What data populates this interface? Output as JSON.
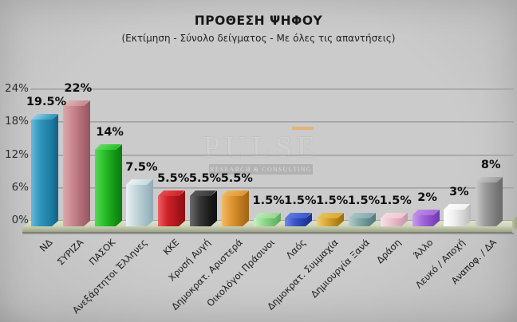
{
  "header": {
    "title": "ΠΡΟΘΕΣΗ ΨΗΦΟΥ",
    "subtitle": "(Εκτίμηση - Σύνολο δείγματος - Με όλες τις απαντήσεις)"
  },
  "watermark": {
    "name": "PULSE",
    "tagline": "RESEARCH & CONSULTING",
    "accent_color": "#ecab5f"
  },
  "chart_data": {
    "type": "bar",
    "title": "ΠΡΟΘΕΣΗ ΨΗΦΟΥ",
    "subtitle": "(Εκτίμηση - Σύνολο δείγματος - Με όλες τις απαντήσεις)",
    "style": "3d-column",
    "grid": true,
    "legend_position": "none",
    "ylim": [
      0,
      24
    ],
    "yticks": [
      {
        "value": 24,
        "label": "24%"
      },
      {
        "value": 18,
        "label": "18%"
      },
      {
        "value": 12,
        "label": "12%"
      },
      {
        "value": 6,
        "label": "6%"
      },
      {
        "value": 0,
        "label": "0%"
      }
    ],
    "categories": [
      "ΝΔ",
      "ΣΥΡΙΖΑ",
      "ΠΑΣΟΚ",
      "Ανεξάρτητοι Έλληνες",
      "ΚΚΕ",
      "Χρυσή Αυγή",
      "Δημοκρατ. Αριστερά",
      "Οικολόγοι Πράσινοι",
      "Λαός",
      "Δημοκρατ. Συμμαχία",
      "Δημιουργία Ξανά",
      "Δράση",
      "Άλλο",
      "Λευκό / Αποχή",
      "Αναποφ. / ΔΑ"
    ],
    "values": [
      19.5,
      22,
      14,
      7.5,
      5.5,
      5.5,
      5.5,
      1.5,
      1.5,
      1.5,
      1.5,
      1.5,
      2,
      3,
      8
    ],
    "value_labels": [
      "19.5%",
      "22%",
      "14%",
      "7.5%",
      "5.5%",
      "5.5%",
      "5.5%",
      "1.5%",
      "1.5%",
      "1.5%",
      "1.5%",
      "1.5%",
      "2%",
      "3%",
      "8%"
    ],
    "colors": [
      {
        "light": "#62b8d6",
        "mid": "#2e95ba",
        "dark": "#1b79a2",
        "side": "#14607f",
        "top": "#8fccdf"
      },
      {
        "light": "#dda6ab",
        "mid": "#c8878e",
        "dark": "#aa6570",
        "side": "#92555e",
        "top": "#e0b2b5"
      },
      {
        "light": "#57d654",
        "mid": "#2abf2a",
        "dark": "#119114",
        "side": "#0d7a11",
        "top": "#63da63"
      },
      {
        "light": "#e7f0f2",
        "mid": "#c6d8dc",
        "dark": "#a0bcc4",
        "side": "#90abb4",
        "top": "#eaf2f3"
      },
      {
        "light": "#e85e62",
        "mid": "#d02228",
        "dark": "#a21418",
        "side": "#8c1014",
        "top": "#e5484d"
      },
      {
        "light": "#6a6a6a",
        "mid": "#3a3a3a",
        "dark": "#181818",
        "side": "#101010",
        "top": "#575757"
      },
      {
        "light": "#f3ba60",
        "mid": "#df9532",
        "dark": "#b7741c",
        "side": "#a06414",
        "top": "#eeb556"
      },
      {
        "light": "#c6efc2",
        "mid": "#94da91",
        "dark": "#69bd69",
        "side": "#60a660",
        "top": "#b6eab2"
      },
      {
        "light": "#6d87e9",
        "mid": "#3c57ca",
        "dark": "#2138a2",
        "side": "#1c2f8e",
        "top": "#6079de"
      },
      {
        "light": "#f1cd70",
        "mid": "#d9a93a",
        "dark": "#b08013",
        "side": "#966f0e",
        "top": "#e7c257"
      },
      {
        "light": "#b4cccd",
        "mid": "#86aaac",
        "dark": "#5e878a",
        "side": "#537b7d",
        "top": "#a7c3c4"
      },
      {
        "light": "#f9dfe7",
        "mid": "#efc5d2",
        "dark": "#d7a2b6",
        "side": "#c695aa",
        "top": "#f5dae1"
      },
      {
        "light": "#c89bed",
        "mid": "#a569da",
        "dark": "#8247c0",
        "side": "#7139ae",
        "top": "#bc8be7"
      },
      {
        "light": "#ffffff",
        "mid": "#f1f1f1",
        "dark": "#d0d0d0",
        "side": "#b9b9b9",
        "top": "#fcfcfc"
      },
      {
        "light": "#cacaca",
        "mid": "#9d9d9d",
        "dark": "#797979",
        "side": "#6a6a6a",
        "top": "#c3c3c3"
      }
    ]
  }
}
